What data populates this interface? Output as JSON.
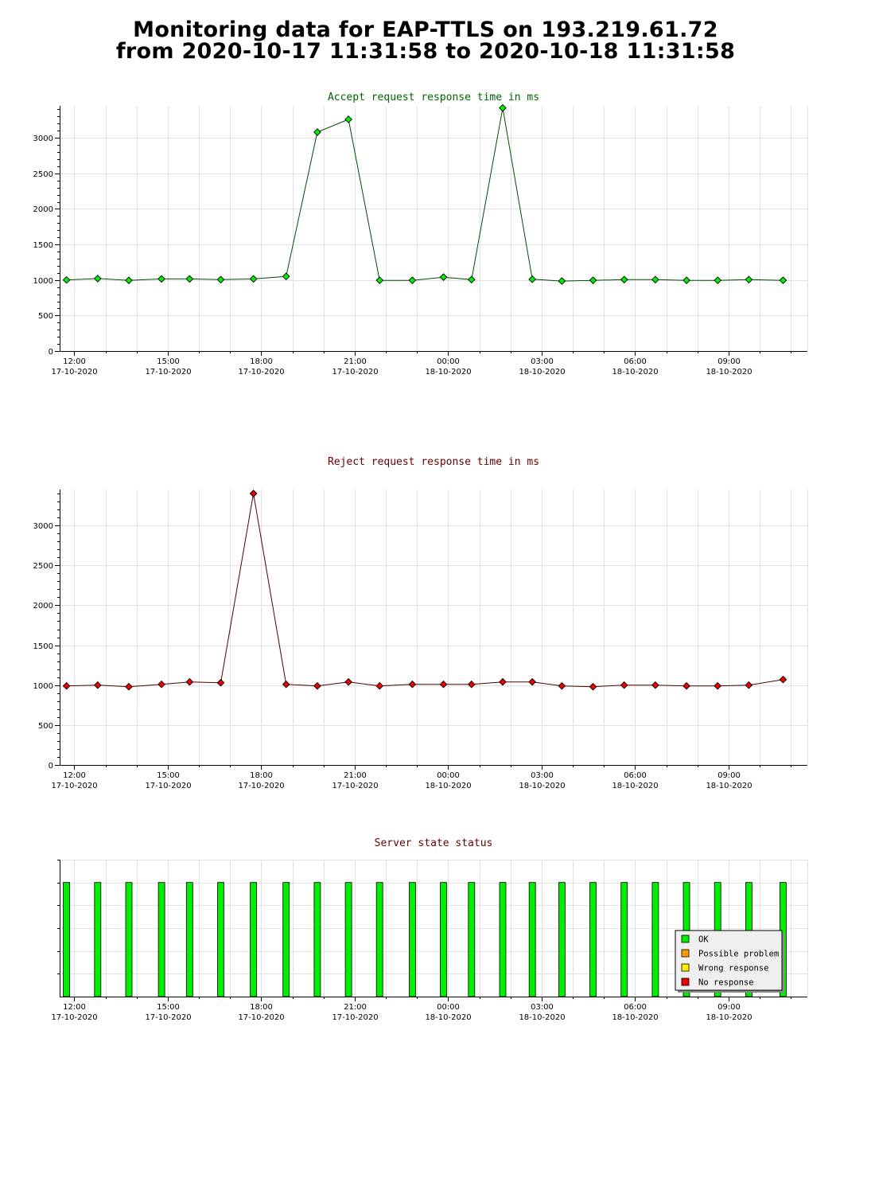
{
  "header": {
    "title_line1": "Monitoring data for EAP-TTLS on 193.219.61.72",
    "title_line2": "from 2020-10-17 11:31:58 to 2020-10-18 11:31:58"
  },
  "chart_data": [
    {
      "type": "line",
      "title": "Accept request response time in ms",
      "title_color": "#006400",
      "line_color": "#004d00",
      "marker_color": "#00ee00",
      "x_unit": "hours since 2020-10-17 11:31:58",
      "xlim": [
        0,
        24
      ],
      "ylim": [
        0,
        3450
      ],
      "y_ticks": [
        0,
        500,
        1000,
        1500,
        2000,
        2500,
        3000
      ],
      "y_minor_step": 100,
      "x_ticks": [
        {
          "x": 0.47,
          "time": "12:00",
          "date": "17-10-2020"
        },
        {
          "x": 3.47,
          "time": "15:00",
          "date": "17-10-2020"
        },
        {
          "x": 6.47,
          "time": "18:00",
          "date": "17-10-2020"
        },
        {
          "x": 9.47,
          "time": "21:00",
          "date": "17-10-2020"
        },
        {
          "x": 12.47,
          "time": "00:00",
          "date": "18-10-2020"
        },
        {
          "x": 15.47,
          "time": "03:00",
          "date": "18-10-2020"
        },
        {
          "x": 18.47,
          "time": "06:00",
          "date": "18-10-2020"
        },
        {
          "x": 21.47,
          "time": "09:00",
          "date": "18-10-2020"
        }
      ],
      "x_minor_step": 1,
      "grid": true,
      "x": [
        0.22,
        1.22,
        2.22,
        3.27,
        4.17,
        5.17,
        6.22,
        7.27,
        8.27,
        9.27,
        10.27,
        11.32,
        12.32,
        13.22,
        14.22,
        15.17,
        16.12,
        17.12,
        18.12,
        19.12,
        20.12,
        21.12,
        22.12,
        23.22
      ],
      "y": [
        1000,
        1020,
        995,
        1015,
        1015,
        1005,
        1015,
        1050,
        3080,
        3260,
        995,
        995,
        1040,
        1005,
        3420,
        1010,
        985,
        995,
        1005,
        1005,
        995,
        995,
        1005,
        995
      ]
    },
    {
      "type": "line",
      "title": "Reject request response time in ms",
      "title_color": "#640000",
      "line_color": "#4d0000",
      "marker_color": "#ee0000",
      "x_unit": "hours since 2020-10-17 11:31:58",
      "xlim": [
        0,
        24
      ],
      "ylim": [
        0,
        3450
      ],
      "y_ticks": [
        0,
        500,
        1000,
        1500,
        2000,
        2500,
        3000
      ],
      "y_minor_step": 100,
      "x_ticks": [
        {
          "x": 0.47,
          "time": "12:00",
          "date": "17-10-2020"
        },
        {
          "x": 3.47,
          "time": "15:00",
          "date": "17-10-2020"
        },
        {
          "x": 6.47,
          "time": "18:00",
          "date": "17-10-2020"
        },
        {
          "x": 9.47,
          "time": "21:00",
          "date": "17-10-2020"
        },
        {
          "x": 12.47,
          "time": "00:00",
          "date": "18-10-2020"
        },
        {
          "x": 15.47,
          "time": "03:00",
          "date": "18-10-2020"
        },
        {
          "x": 18.47,
          "time": "06:00",
          "date": "18-10-2020"
        },
        {
          "x": 21.47,
          "time": "09:00",
          "date": "18-10-2020"
        }
      ],
      "x_minor_step": 1,
      "grid": true,
      "x": [
        0.22,
        1.22,
        2.22,
        3.27,
        4.17,
        5.17,
        6.22,
        7.27,
        8.27,
        9.27,
        10.27,
        11.32,
        12.32,
        13.22,
        14.22,
        15.17,
        16.12,
        17.12,
        18.12,
        19.12,
        20.12,
        21.12,
        22.12,
        23.22
      ],
      "y": [
        990,
        1000,
        980,
        1010,
        1040,
        1030,
        3400,
        1010,
        990,
        1040,
        990,
        1010,
        1010,
        1010,
        1040,
        1040,
        990,
        980,
        1000,
        1000,
        990,
        990,
        1000,
        1070
      ]
    },
    {
      "type": "bar",
      "title": "Server state status",
      "title_color": "#640000",
      "x_unit": "hours since 2020-10-17 11:31:58",
      "xlim": [
        0,
        24
      ],
      "y_gridlines": 6,
      "x_ticks": [
        {
          "x": 0.47,
          "time": "12:00",
          "date": "17-10-2020"
        },
        {
          "x": 3.47,
          "time": "15:00",
          "date": "17-10-2020"
        },
        {
          "x": 6.47,
          "time": "18:00",
          "date": "17-10-2020"
        },
        {
          "x": 9.47,
          "time": "21:00",
          "date": "17-10-2020"
        },
        {
          "x": 12.47,
          "time": "00:00",
          "date": "18-10-2020"
        },
        {
          "x": 15.47,
          "time": "03:00",
          "date": "18-10-2020"
        },
        {
          "x": 18.47,
          "time": "06:00",
          "date": "18-10-2020"
        },
        {
          "x": 21.47,
          "time": "09:00",
          "date": "18-10-2020"
        }
      ],
      "x_minor_step": 1,
      "grid": true,
      "x": [
        0.22,
        1.22,
        2.22,
        3.27,
        4.17,
        5.17,
        6.22,
        7.27,
        8.27,
        9.27,
        10.27,
        11.32,
        12.32,
        13.22,
        14.22,
        15.17,
        16.12,
        17.12,
        18.12,
        19.12,
        20.12,
        21.12,
        22.12,
        23.22
      ],
      "states": [
        "OK",
        "OK",
        "OK",
        "OK",
        "OK",
        "OK",
        "OK",
        "OK",
        "OK",
        "OK",
        "OK",
        "OK",
        "OK",
        "OK",
        "OK",
        "OK",
        "OK",
        "OK",
        "OK",
        "OK",
        "OK",
        "OK",
        "OK",
        "OK"
      ],
      "legend": {
        "placement": "bottom-right",
        "items": [
          {
            "label": "OK",
            "color": "#00ee00"
          },
          {
            "label": "Possible problem",
            "color": "#ff9900"
          },
          {
            "label": "Wrong response",
            "color": "#ffee00"
          },
          {
            "label": "No response",
            "color": "#ee0000"
          }
        ]
      }
    }
  ]
}
